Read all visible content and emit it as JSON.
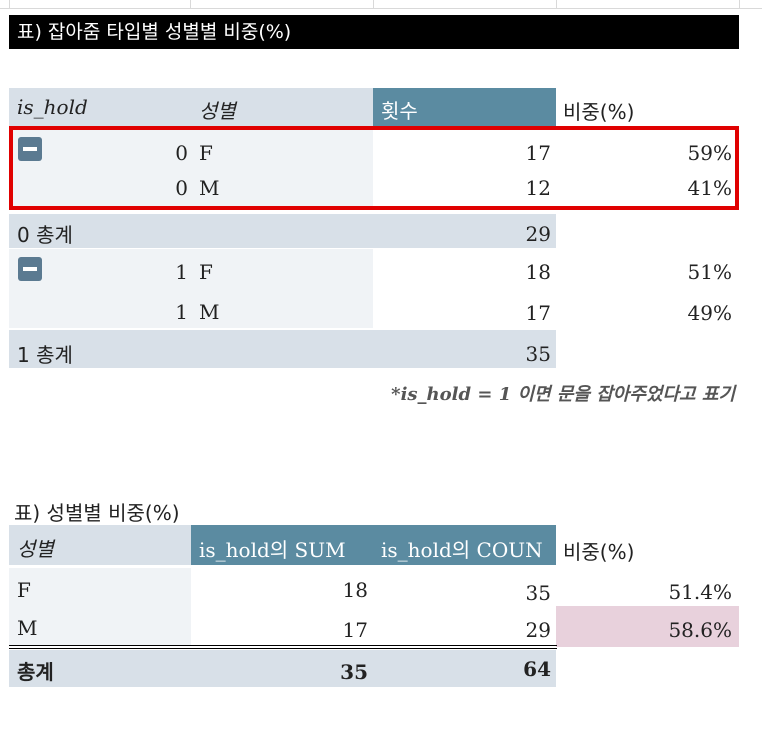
{
  "table1": {
    "title": "표) 잡아줌 타입별 성별별 비중(%)",
    "headers": {
      "is_hold": "is_hold",
      "gender": "성별",
      "count": "횟수",
      "ratio": "비중(%)"
    },
    "rows": [
      {
        "is_hold": "0",
        "gender": "F",
        "count": "17",
        "ratio": "59%"
      },
      {
        "is_hold": "0",
        "gender": "M",
        "count": "12",
        "ratio": "41%"
      },
      {
        "is_hold": "1",
        "gender": "F",
        "count": "18",
        "ratio": "51%"
      },
      {
        "is_hold": "1",
        "gender": "M",
        "count": "17",
        "ratio": "49%"
      }
    ],
    "totals": [
      {
        "label": "0 총계",
        "count": "29"
      },
      {
        "label": "1 총계",
        "count": "35"
      }
    ],
    "note": "*is_hold = 1 이면 문을 잡아주었다고 표기"
  },
  "table2": {
    "title": "표) 성별별 비중(%)",
    "headers": {
      "gender": "성별",
      "sum": "is_hold의 SUM",
      "count": "is_hold의 COUN",
      "ratio": "비중(%)"
    },
    "rows": [
      {
        "gender": "F",
        "sum": "18",
        "count": "35",
        "ratio": "51.4%"
      },
      {
        "gender": "M",
        "sum": "17",
        "count": "29",
        "ratio": "58.6%"
      }
    ],
    "total": {
      "label": "총계",
      "sum": "35",
      "count": "64"
    }
  },
  "colors": {
    "header_light": "#d8e0e8",
    "header_dark": "#5b8ba1",
    "highlight": "#e00000",
    "pink_cell": "#e8d1dc"
  }
}
